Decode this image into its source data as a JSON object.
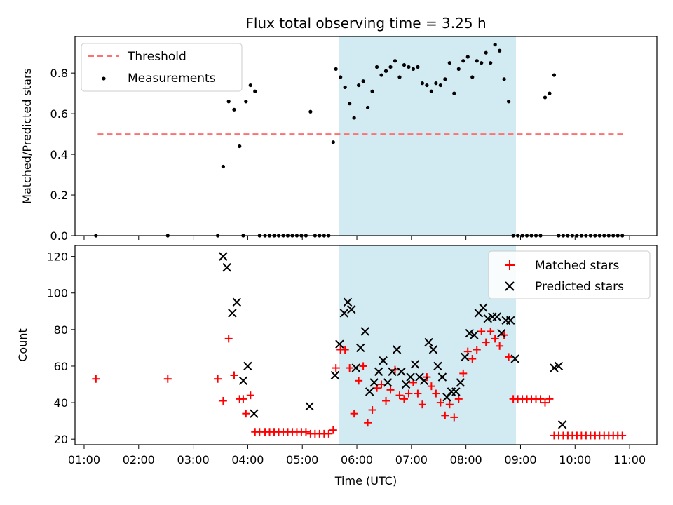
{
  "title": "Flux total observing time = 3.25 h",
  "xlabel": "Time (UTC)",
  "x_ticks": [
    "01:00",
    "02:00",
    "03:00",
    "04:00",
    "05:00",
    "06:00",
    "07:00",
    "08:00",
    "09:00",
    "10:00",
    "11:00"
  ],
  "highlight": {
    "start": "05:40",
    "end": "08:55",
    "color": "#add8e6"
  },
  "chart_data": [
    {
      "type": "scatter",
      "ylabel": "Matched/Predicted stars",
      "xlim": [
        "00:50",
        "11:30"
      ],
      "ylim": [
        0,
        0.98
      ],
      "y_ticks": [
        "0.0",
        "0.2",
        "0.4",
        "0.6",
        "0.8"
      ],
      "legend_position": "upper left",
      "threshold": {
        "name": "Threshold",
        "value": 0.5,
        "x_start": "01:15",
        "x_end": "10:55",
        "color": "#ff7070"
      },
      "series": [
        {
          "name": "Measurements",
          "color": "#000000",
          "x": [
            "01:13",
            "02:32",
            "03:27",
            "03:33",
            "03:39",
            "03:45",
            "03:51",
            "03:55",
            "03:58",
            "04:03",
            "04:08",
            "04:13",
            "04:19",
            "04:24",
            "04:29",
            "04:34",
            "04:39",
            "04:44",
            "04:49",
            "04:54",
            "04:59",
            "05:04",
            "05:09",
            "05:14",
            "05:19",
            "05:24",
            "05:29",
            "05:34",
            "05:37",
            "05:42",
            "05:47",
            "05:52",
            "05:57",
            "06:02",
            "06:07",
            "06:12",
            "06:17",
            "06:22",
            "06:27",
            "06:32",
            "06:37",
            "06:42",
            "06:47",
            "06:52",
            "06:57",
            "07:02",
            "07:07",
            "07:12",
            "07:17",
            "07:22",
            "07:27",
            "07:32",
            "07:37",
            "07:42",
            "07:47",
            "07:52",
            "07:57",
            "08:02",
            "08:07",
            "08:12",
            "08:17",
            "08:22",
            "08:27",
            "08:32",
            "08:37",
            "08:42",
            "08:47",
            "08:52",
            "08:57",
            "09:02",
            "09:07",
            "09:12",
            "09:17",
            "09:22",
            "09:27",
            "09:32",
            "09:37",
            "09:42",
            "09:47",
            "09:52",
            "09:57",
            "10:02",
            "10:07",
            "10:12",
            "10:17",
            "10:22",
            "10:27",
            "10:32",
            "10:37",
            "10:42",
            "10:47",
            "10:52"
          ],
          "y": [
            0,
            0,
            0,
            0.34,
            0.66,
            0.62,
            0.44,
            0,
            0.66,
            0.74,
            0.71,
            0,
            0,
            0,
            0,
            0,
            0,
            0,
            0,
            0,
            0,
            0,
            0.61,
            0,
            0,
            0,
            0,
            0.46,
            0.82,
            0.78,
            0.73,
            0.65,
            0.58,
            0.74,
            0.76,
            0.63,
            0.71,
            0.83,
            0.79,
            0.81,
            0.83,
            0.86,
            0.78,
            0.84,
            0.83,
            0.82,
            0.83,
            0.75,
            0.74,
            0.71,
            0.75,
            0.74,
            0.77,
            0.85,
            0.7,
            0.82,
            0.86,
            0.88,
            0.78,
            0.86,
            0.85,
            0.9,
            0.85,
            0.94,
            0.91,
            0.77,
            0.66,
            0,
            0,
            0,
            0,
            0,
            0,
            0,
            0.68,
            0.7,
            0.79,
            0,
            0,
            0,
            0,
            0,
            0,
            0,
            0,
            0,
            0,
            0,
            0,
            0,
            0,
            0
          ]
        }
      ]
    },
    {
      "type": "scatter",
      "ylabel": "Count",
      "xlim": [
        "00:50",
        "11:30"
      ],
      "ylim": [
        17,
        126
      ],
      "y_ticks": [
        "20",
        "40",
        "60",
        "80",
        "100",
        "120"
      ],
      "legend_position": "upper right",
      "series": [
        {
          "name": "Matched stars",
          "marker": "+",
          "color": "#ff0000",
          "x": [
            "01:13",
            "02:32",
            "03:27",
            "03:33",
            "03:39",
            "03:45",
            "03:51",
            "03:55",
            "03:58",
            "04:03",
            "04:08",
            "04:13",
            "04:19",
            "04:24",
            "04:29",
            "04:34",
            "04:39",
            "04:44",
            "04:49",
            "04:54",
            "04:59",
            "05:04",
            "05:09",
            "05:14",
            "05:19",
            "05:24",
            "05:29",
            "05:34",
            "05:37",
            "05:42",
            "05:47",
            "05:52",
            "05:57",
            "06:02",
            "06:07",
            "06:12",
            "06:17",
            "06:22",
            "06:27",
            "06:32",
            "06:37",
            "06:42",
            "06:47",
            "06:52",
            "06:57",
            "07:02",
            "07:07",
            "07:12",
            "07:17",
            "07:22",
            "07:27",
            "07:32",
            "07:37",
            "07:42",
            "07:47",
            "07:52",
            "07:57",
            "08:02",
            "08:07",
            "08:12",
            "08:17",
            "08:22",
            "08:27",
            "08:32",
            "08:37",
            "08:42",
            "08:47",
            "08:52",
            "08:57",
            "09:02",
            "09:07",
            "09:12",
            "09:17",
            "09:22",
            "09:27",
            "09:32",
            "09:37",
            "09:42",
            "09:47",
            "09:52",
            "09:57",
            "10:02",
            "10:07",
            "10:12",
            "10:17",
            "10:22",
            "10:27",
            "10:32",
            "10:37",
            "10:42",
            "10:47",
            "10:52"
          ],
          "y": [
            53,
            53,
            53,
            41,
            75,
            55,
            42,
            42,
            34,
            44,
            24,
            24,
            24,
            24,
            24,
            24,
            24,
            24,
            24,
            24,
            24,
            24,
            23,
            23,
            23,
            23,
            23,
            25,
            59,
            69,
            69,
            59,
            34,
            52,
            60,
            29,
            36,
            48,
            50,
            41,
            47,
            58,
            44,
            42,
            45,
            51,
            45,
            39,
            54,
            49,
            45,
            40,
            33,
            39,
            32,
            42,
            56,
            68,
            64,
            69,
            79,
            73,
            79,
            75,
            71,
            77,
            65,
            42,
            42,
            42,
            42,
            42,
            42,
            42,
            40,
            42,
            22,
            22,
            22,
            22,
            22,
            22,
            22,
            22,
            22,
            22,
            22,
            22,
            22,
            22,
            22,
            22
          ]
        },
        {
          "name": "Predicted stars",
          "marker": "x",
          "color": "#000000",
          "x": [
            "03:33",
            "03:37",
            "03:43",
            "03:48",
            "03:55",
            "04:00",
            "04:07",
            "05:08",
            "05:36",
            "05:41",
            "05:46",
            "05:50",
            "05:54",
            "05:59",
            "06:04",
            "06:09",
            "06:14",
            "06:19",
            "06:24",
            "06:29",
            "06:34",
            "06:39",
            "06:44",
            "06:49",
            "06:54",
            "06:59",
            "07:04",
            "07:09",
            "07:14",
            "07:19",
            "07:24",
            "07:29",
            "07:34",
            "07:39",
            "07:44",
            "07:49",
            "07:54",
            "07:59",
            "08:04",
            "08:09",
            "08:14",
            "08:19",
            "08:24",
            "08:29",
            "08:34",
            "08:39",
            "08:44",
            "08:49",
            "08:54",
            "09:37",
            "09:42",
            "09:46"
          ],
          "y": [
            120,
            114,
            89,
            95,
            52,
            60,
            34,
            38,
            55,
            72,
            89,
            95,
            91,
            59,
            70,
            79,
            46,
            51,
            57,
            63,
            51,
            57,
            69,
            57,
            50,
            54,
            61,
            54,
            52,
            73,
            69,
            60,
            54,
            43,
            46,
            46,
            51,
            65,
            78,
            77,
            89,
            92,
            86,
            87,
            87,
            78,
            85,
            85,
            64,
            59,
            60,
            28
          ]
        }
      ]
    }
  ]
}
